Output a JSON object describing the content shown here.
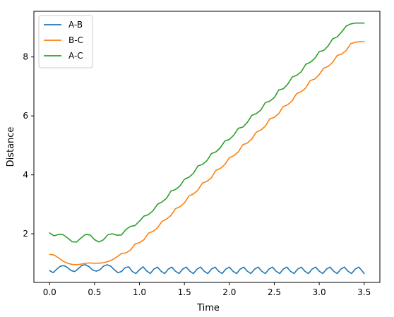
{
  "chart_data": {
    "type": "line",
    "title": "",
    "xlabel": "Time",
    "ylabel": "Distance",
    "xlim": [
      -0.175,
      3.675
    ],
    "ylim": [
      0.35,
      9.55
    ],
    "xticks": [
      0.0,
      0.5,
      1.0,
      1.5,
      2.0,
      2.5,
      3.0,
      3.5
    ],
    "xtick_labels": [
      "0.0",
      "0.5",
      "1.0",
      "1.5",
      "2.0",
      "2.5",
      "3.0",
      "3.5"
    ],
    "yticks": [
      2,
      4,
      6,
      8
    ],
    "ytick_labels": [
      "2",
      "4",
      "6",
      "8"
    ],
    "grid": false,
    "legend_position": "top-left",
    "series": [
      {
        "name": "A-B",
        "color": "#1f77b4",
        "x": [
          0.0,
          0.04,
          0.08,
          0.12,
          0.16,
          0.2,
          0.24,
          0.28,
          0.32,
          0.36,
          0.4,
          0.44,
          0.48,
          0.52,
          0.56,
          0.6,
          0.64,
          0.68,
          0.72,
          0.76,
          0.8,
          0.84,
          0.88,
          0.92,
          0.96,
          1.0,
          1.04,
          1.08,
          1.12,
          1.16,
          1.2,
          1.24,
          1.28,
          1.32,
          1.36,
          1.4,
          1.44,
          1.48,
          1.52,
          1.56,
          1.6,
          1.64,
          1.68,
          1.72,
          1.76,
          1.8,
          1.84,
          1.88,
          1.92,
          1.96,
          2.0,
          2.04,
          2.08,
          2.12,
          2.16,
          2.2,
          2.24,
          2.28,
          2.32,
          2.36,
          2.4,
          2.44,
          2.48,
          2.52,
          2.56,
          2.6,
          2.64,
          2.68,
          2.72,
          2.76,
          2.8,
          2.84,
          2.88,
          2.92,
          2.96,
          3.0,
          3.04,
          3.08,
          3.12,
          3.16,
          3.2,
          3.24,
          3.28,
          3.32,
          3.36,
          3.4,
          3.44,
          3.48,
          3.5
        ],
        "values": [
          0.75,
          0.68,
          0.8,
          0.9,
          0.92,
          0.85,
          0.75,
          0.72,
          0.82,
          0.93,
          0.95,
          0.88,
          0.77,
          0.73,
          0.78,
          0.9,
          0.95,
          0.9,
          0.78,
          0.68,
          0.72,
          0.85,
          0.88,
          0.72,
          0.65,
          0.78,
          0.88,
          0.74,
          0.65,
          0.8,
          0.87,
          0.73,
          0.65,
          0.8,
          0.87,
          0.73,
          0.65,
          0.8,
          0.87,
          0.73,
          0.65,
          0.8,
          0.87,
          0.73,
          0.65,
          0.8,
          0.87,
          0.73,
          0.65,
          0.8,
          0.87,
          0.73,
          0.65,
          0.8,
          0.87,
          0.73,
          0.65,
          0.8,
          0.87,
          0.73,
          0.65,
          0.8,
          0.87,
          0.73,
          0.65,
          0.8,
          0.87,
          0.73,
          0.65,
          0.8,
          0.87,
          0.73,
          0.65,
          0.8,
          0.87,
          0.73,
          0.65,
          0.8,
          0.87,
          0.73,
          0.65,
          0.8,
          0.87,
          0.73,
          0.65,
          0.8,
          0.87,
          0.73,
          0.65
        ]
      },
      {
        "name": "B-C",
        "color": "#ff7f0e",
        "x": [
          0.0,
          0.05,
          0.1,
          0.15,
          0.2,
          0.25,
          0.3,
          0.35,
          0.4,
          0.45,
          0.5,
          0.55,
          0.6,
          0.65,
          0.7,
          0.75,
          0.8,
          0.85,
          0.9,
          0.95,
          1.0,
          1.05,
          1.1,
          1.15,
          1.2,
          1.25,
          1.3,
          1.35,
          1.4,
          1.45,
          1.5,
          1.55,
          1.6,
          1.65,
          1.7,
          1.75,
          1.8,
          1.85,
          1.9,
          1.95,
          2.0,
          2.05,
          2.1,
          2.15,
          2.2,
          2.25,
          2.3,
          2.35,
          2.4,
          2.45,
          2.5,
          2.55,
          2.6,
          2.65,
          2.7,
          2.75,
          2.8,
          2.85,
          2.9,
          2.95,
          3.0,
          3.05,
          3.1,
          3.15,
          3.2,
          3.25,
          3.3,
          3.35,
          3.4,
          3.45,
          3.5
        ],
        "values": [
          1.3,
          1.28,
          1.18,
          1.07,
          1.0,
          0.96,
          0.95,
          0.97,
          1.0,
          1.01,
          1.0,
          1.0,
          1.02,
          1.06,
          1.12,
          1.22,
          1.33,
          1.35,
          1.45,
          1.65,
          1.7,
          1.8,
          2.02,
          2.08,
          2.2,
          2.42,
          2.5,
          2.62,
          2.85,
          2.92,
          3.05,
          3.28,
          3.35,
          3.48,
          3.72,
          3.78,
          3.9,
          4.15,
          4.22,
          4.35,
          4.58,
          4.65,
          4.78,
          5.02,
          5.08,
          5.22,
          5.45,
          5.52,
          5.65,
          5.9,
          5.95,
          6.08,
          6.32,
          6.38,
          6.52,
          6.76,
          6.82,
          6.95,
          7.2,
          7.25,
          7.4,
          7.62,
          7.68,
          7.82,
          8.05,
          8.1,
          8.22,
          8.45,
          8.5,
          8.52,
          8.52
        ]
      },
      {
        "name": "A-C",
        "color": "#2ca02c",
        "x": [
          0.0,
          0.05,
          0.1,
          0.15,
          0.2,
          0.25,
          0.3,
          0.35,
          0.4,
          0.45,
          0.5,
          0.55,
          0.6,
          0.65,
          0.7,
          0.75,
          0.8,
          0.85,
          0.9,
          0.95,
          1.0,
          1.05,
          1.1,
          1.15,
          1.2,
          1.25,
          1.3,
          1.35,
          1.4,
          1.45,
          1.5,
          1.55,
          1.6,
          1.65,
          1.7,
          1.75,
          1.8,
          1.85,
          1.9,
          1.95,
          2.0,
          2.05,
          2.1,
          2.15,
          2.2,
          2.25,
          2.3,
          2.35,
          2.4,
          2.45,
          2.5,
          2.55,
          2.6,
          2.65,
          2.7,
          2.75,
          2.8,
          2.85,
          2.9,
          2.95,
          3.0,
          3.05,
          3.1,
          3.15,
          3.2,
          3.25,
          3.3,
          3.35,
          3.4,
          3.45,
          3.5
        ],
        "values": [
          2.03,
          1.93,
          1.98,
          1.97,
          1.86,
          1.73,
          1.72,
          1.86,
          1.98,
          1.96,
          1.8,
          1.72,
          1.8,
          1.97,
          2.0,
          1.95,
          1.96,
          2.15,
          2.25,
          2.28,
          2.43,
          2.6,
          2.65,
          2.78,
          3.0,
          3.08,
          3.2,
          3.45,
          3.5,
          3.62,
          3.85,
          3.92,
          4.05,
          4.3,
          4.35,
          4.48,
          4.72,
          4.78,
          4.92,
          5.15,
          5.2,
          5.35,
          5.58,
          5.62,
          5.78,
          6.02,
          6.08,
          6.2,
          6.45,
          6.5,
          6.62,
          6.88,
          6.92,
          7.08,
          7.32,
          7.38,
          7.5,
          7.75,
          7.82,
          7.95,
          8.18,
          8.22,
          8.38,
          8.62,
          8.68,
          8.85,
          9.05,
          9.12,
          9.15,
          9.15,
          9.15
        ]
      }
    ]
  }
}
